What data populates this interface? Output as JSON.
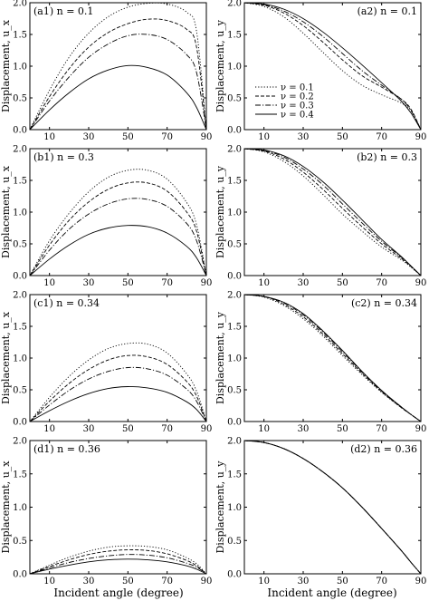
{
  "figure": {
    "xlabel_common": "Incident angle (degree)"
  },
  "legend": {
    "entries": [
      {
        "label": "ν = 0.1",
        "dash": "1.2,2"
      },
      {
        "label": "ν = 0.2",
        "dash": "4,2"
      },
      {
        "label": "ν = 0.3",
        "dash": "6,2,1.2,2"
      },
      {
        "label": "ν = 0.4",
        "dash": ""
      }
    ]
  },
  "chart_data": [
    {
      "id": "a1",
      "type": "line",
      "panel_label": "(a1) n = 0.1",
      "ylabel": "Displacement, u_x",
      "xlim": [
        0,
        90
      ],
      "ylim": [
        0,
        2.0
      ],
      "xticks": [
        10,
        30,
        50,
        70,
        90
      ],
      "yticks": [
        0.0,
        0.5,
        1.0,
        1.5,
        2.0
      ],
      "series": [
        {
          "name": "ν = 0.1",
          "x": [
            0,
            10,
            20,
            30,
            40,
            50,
            60,
            70,
            80,
            85,
            90
          ],
          "y": [
            0,
            0.62,
            1.14,
            1.52,
            1.78,
            1.93,
            1.99,
            1.98,
            1.85,
            1.55,
            0
          ]
        },
        {
          "name": "ν = 0.2",
          "x": [
            0,
            10,
            20,
            30,
            40,
            50,
            60,
            70,
            80,
            85,
            90
          ],
          "y": [
            0,
            0.52,
            0.96,
            1.3,
            1.53,
            1.67,
            1.74,
            1.72,
            1.58,
            1.3,
            0
          ]
        },
        {
          "name": "ν = 0.3",
          "x": [
            0,
            10,
            20,
            30,
            40,
            50,
            60,
            70,
            80,
            85,
            90
          ],
          "y": [
            0,
            0.45,
            0.83,
            1.14,
            1.35,
            1.48,
            1.5,
            1.42,
            1.18,
            0.9,
            0
          ]
        },
        {
          "name": "ν = 0.4",
          "x": [
            0,
            10,
            20,
            30,
            40,
            50,
            60,
            70,
            80,
            85,
            90
          ],
          "y": [
            0,
            0.31,
            0.58,
            0.8,
            0.94,
            1.01,
            0.98,
            0.86,
            0.58,
            0.35,
            0
          ]
        }
      ]
    },
    {
      "id": "a2",
      "type": "line",
      "panel_label": "(a2) n = 0.1",
      "ylabel": "Displacement, u_y",
      "xlim": [
        0,
        90
      ],
      "ylim": [
        0,
        2.0
      ],
      "xticks": [
        10,
        30,
        50,
        70,
        90
      ],
      "yticks": [
        0.0,
        0.5,
        1.0,
        1.5,
        2.0
      ],
      "series": [
        {
          "name": "ν = 0.1",
          "x": [
            0,
            10,
            20,
            30,
            40,
            50,
            60,
            70,
            80,
            85,
            90
          ],
          "y": [
            2.0,
            1.94,
            1.78,
            1.52,
            1.22,
            0.93,
            0.7,
            0.55,
            0.42,
            0.3,
            0
          ]
        },
        {
          "name": "ν = 0.2",
          "x": [
            0,
            10,
            20,
            30,
            40,
            50,
            60,
            70,
            80,
            85,
            90
          ],
          "y": [
            2.0,
            1.96,
            1.84,
            1.64,
            1.38,
            1.1,
            0.85,
            0.67,
            0.48,
            0.32,
            0
          ]
        },
        {
          "name": "ν = 0.3",
          "x": [
            0,
            10,
            20,
            30,
            40,
            50,
            60,
            70,
            80,
            85,
            90
          ],
          "y": [
            2.0,
            1.97,
            1.87,
            1.7,
            1.47,
            1.2,
            0.93,
            0.7,
            0.48,
            0.3,
            0
          ]
        },
        {
          "name": "ν = 0.4",
          "x": [
            0,
            10,
            20,
            30,
            40,
            50,
            60,
            70,
            80,
            85,
            90
          ],
          "y": [
            2.0,
            1.98,
            1.9,
            1.75,
            1.54,
            1.29,
            1.02,
            0.74,
            0.45,
            0.26,
            0
          ]
        }
      ]
    },
    {
      "id": "b1",
      "type": "line",
      "panel_label": "(b1) n = 0.3",
      "ylabel": "Displacement, u_x",
      "xlim": [
        0,
        90
      ],
      "ylim": [
        0,
        2.0
      ],
      "xticks": [
        10,
        30,
        50,
        70,
        90
      ],
      "yticks": [
        0.0,
        0.5,
        1.0,
        1.5,
        2.0
      ],
      "series": [
        {
          "name": "ν = 0.1",
          "x": [
            0,
            10,
            20,
            30,
            40,
            50,
            60,
            70,
            80,
            85,
            90
          ],
          "y": [
            0,
            0.55,
            0.98,
            1.32,
            1.55,
            1.66,
            1.66,
            1.52,
            1.15,
            0.8,
            0
          ]
        },
        {
          "name": "ν = 0.2",
          "x": [
            0,
            10,
            20,
            30,
            40,
            50,
            60,
            70,
            80,
            85,
            90
          ],
          "y": [
            0,
            0.48,
            0.87,
            1.16,
            1.36,
            1.46,
            1.46,
            1.33,
            1.0,
            0.7,
            0
          ]
        },
        {
          "name": "ν = 0.3",
          "x": [
            0,
            10,
            20,
            30,
            40,
            50,
            60,
            70,
            80,
            85,
            90
          ],
          "y": [
            0,
            0.4,
            0.73,
            0.97,
            1.13,
            1.21,
            1.2,
            1.09,
            0.82,
            0.55,
            0
          ]
        },
        {
          "name": "ν = 0.4",
          "x": [
            0,
            10,
            20,
            30,
            40,
            50,
            60,
            70,
            80,
            85,
            90
          ],
          "y": [
            0,
            0.26,
            0.48,
            0.65,
            0.75,
            0.79,
            0.77,
            0.67,
            0.46,
            0.28,
            0
          ]
        }
      ]
    },
    {
      "id": "b2",
      "type": "line",
      "panel_label": "(b2) n = 0.3",
      "ylabel": "Displacement, u_y",
      "xlim": [
        0,
        90
      ],
      "ylim": [
        0,
        2.0
      ],
      "xticks": [
        10,
        30,
        50,
        70,
        90
      ],
      "yticks": [
        0.0,
        0.5,
        1.0,
        1.5,
        2.0
      ],
      "series": [
        {
          "name": "ν = 0.1",
          "x": [
            0,
            10,
            20,
            30,
            40,
            50,
            60,
            70,
            80,
            85,
            90
          ],
          "y": [
            2.0,
            1.95,
            1.8,
            1.57,
            1.28,
            0.97,
            0.7,
            0.45,
            0.25,
            0.13,
            0
          ]
        },
        {
          "name": "ν = 0.2",
          "x": [
            0,
            10,
            20,
            30,
            40,
            50,
            60,
            70,
            80,
            85,
            90
          ],
          "y": [
            2.0,
            1.96,
            1.84,
            1.63,
            1.36,
            1.06,
            0.77,
            0.5,
            0.27,
            0.14,
            0
          ]
        },
        {
          "name": "ν = 0.3",
          "x": [
            0,
            10,
            20,
            30,
            40,
            50,
            60,
            70,
            80,
            85,
            90
          ],
          "y": [
            2.0,
            1.97,
            1.87,
            1.68,
            1.43,
            1.13,
            0.83,
            0.54,
            0.29,
            0.15,
            0
          ]
        },
        {
          "name": "ν = 0.4",
          "x": [
            0,
            10,
            20,
            30,
            40,
            50,
            60,
            70,
            80,
            85,
            90
          ],
          "y": [
            2.0,
            1.98,
            1.89,
            1.72,
            1.48,
            1.19,
            0.88,
            0.57,
            0.3,
            0.15,
            0
          ]
        }
      ]
    },
    {
      "id": "c1",
      "type": "line",
      "panel_label": "(c1) n = 0.34",
      "ylabel": "Displacement, u_x",
      "xlim": [
        0,
        90
      ],
      "ylim": [
        0,
        2.0
      ],
      "xticks": [
        10,
        30,
        50,
        70,
        90
      ],
      "yticks": [
        0.0,
        0.5,
        1.0,
        1.5,
        2.0
      ],
      "series": [
        {
          "name": "ν = 0.1",
          "x": [
            0,
            10,
            20,
            30,
            40,
            50,
            60,
            70,
            80,
            85,
            90
          ],
          "y": [
            0,
            0.38,
            0.71,
            0.97,
            1.15,
            1.23,
            1.22,
            1.08,
            0.75,
            0.48,
            0
          ]
        },
        {
          "name": "ν = 0.2",
          "x": [
            0,
            10,
            20,
            30,
            40,
            50,
            60,
            70,
            80,
            85,
            90
          ],
          "y": [
            0,
            0.32,
            0.6,
            0.82,
            0.97,
            1.04,
            1.02,
            0.9,
            0.63,
            0.4,
            0
          ]
        },
        {
          "name": "ν = 0.3",
          "x": [
            0,
            10,
            20,
            30,
            40,
            50,
            60,
            70,
            80,
            85,
            90
          ],
          "y": [
            0,
            0.26,
            0.49,
            0.67,
            0.79,
            0.85,
            0.83,
            0.73,
            0.51,
            0.32,
            0
          ]
        },
        {
          "name": "ν = 0.4",
          "x": [
            0,
            10,
            20,
            30,
            40,
            50,
            60,
            70,
            80,
            85,
            90
          ],
          "y": [
            0,
            0.17,
            0.32,
            0.44,
            0.52,
            0.55,
            0.53,
            0.46,
            0.31,
            0.19,
            0
          ]
        }
      ]
    },
    {
      "id": "c2",
      "type": "line",
      "panel_label": "(c2) n = 0.34",
      "ylabel": "Displacement, u_y",
      "xlim": [
        0,
        90
      ],
      "ylim": [
        0,
        2.0
      ],
      "xticks": [
        10,
        30,
        50,
        70,
        90
      ],
      "yticks": [
        0.0,
        0.5,
        1.0,
        1.5,
        2.0
      ],
      "series": [
        {
          "name": "ν = 0.1",
          "x": [
            0,
            10,
            20,
            30,
            40,
            50,
            60,
            70,
            80,
            85,
            90
          ],
          "y": [
            2.0,
            1.96,
            1.83,
            1.62,
            1.35,
            1.04,
            0.74,
            0.46,
            0.22,
            0.11,
            0
          ]
        },
        {
          "name": "ν = 0.2",
          "x": [
            0,
            10,
            20,
            30,
            40,
            50,
            60,
            70,
            80,
            85,
            90
          ],
          "y": [
            2.0,
            1.97,
            1.85,
            1.65,
            1.38,
            1.07,
            0.76,
            0.47,
            0.22,
            0.11,
            0
          ]
        },
        {
          "name": "ν = 0.3",
          "x": [
            0,
            10,
            20,
            30,
            40,
            50,
            60,
            70,
            80,
            85,
            90
          ],
          "y": [
            2.0,
            1.97,
            1.87,
            1.68,
            1.41,
            1.1,
            0.78,
            0.48,
            0.23,
            0.11,
            0
          ]
        },
        {
          "name": "ν = 0.4",
          "x": [
            0,
            10,
            20,
            30,
            40,
            50,
            60,
            70,
            80,
            85,
            90
          ],
          "y": [
            2.0,
            1.97,
            1.88,
            1.7,
            1.43,
            1.12,
            0.79,
            0.49,
            0.23,
            0.11,
            0
          ]
        }
      ]
    },
    {
      "id": "d1",
      "type": "line",
      "panel_label": "(d1) n = 0.36",
      "ylabel": "Displacement, u_x",
      "xlim": [
        0,
        90
      ],
      "ylim": [
        0,
        2.0
      ],
      "xticks": [
        10,
        30,
        50,
        70,
        90
      ],
      "yticks": [
        0.0,
        0.5,
        1.0,
        1.5,
        2.0
      ],
      "series": [
        {
          "name": "ν = 0.1",
          "x": [
            0,
            10,
            20,
            30,
            40,
            50,
            60,
            70,
            80,
            85,
            90
          ],
          "y": [
            0,
            0.13,
            0.25,
            0.34,
            0.4,
            0.42,
            0.41,
            0.36,
            0.24,
            0.15,
            0
          ]
        },
        {
          "name": "ν = 0.2",
          "x": [
            0,
            10,
            20,
            30,
            40,
            50,
            60,
            70,
            80,
            85,
            90
          ],
          "y": [
            0,
            0.11,
            0.21,
            0.29,
            0.34,
            0.36,
            0.35,
            0.3,
            0.2,
            0.12,
            0
          ]
        },
        {
          "name": "ν = 0.3",
          "x": [
            0,
            10,
            20,
            30,
            40,
            50,
            60,
            70,
            80,
            85,
            90
          ],
          "y": [
            0,
            0.09,
            0.17,
            0.23,
            0.27,
            0.29,
            0.28,
            0.24,
            0.16,
            0.1,
            0
          ]
        },
        {
          "name": "ν = 0.4",
          "x": [
            0,
            10,
            20,
            30,
            40,
            50,
            60,
            70,
            80,
            85,
            90
          ],
          "y": [
            0,
            0.07,
            0.13,
            0.18,
            0.21,
            0.22,
            0.21,
            0.18,
            0.12,
            0.07,
            0
          ]
        }
      ]
    },
    {
      "id": "d2",
      "type": "line",
      "panel_label": "(d2) n = 0.36",
      "ylabel": "Displacement, u_y",
      "xlim": [
        0,
        90
      ],
      "ylim": [
        0,
        2.0
      ],
      "xticks": [
        10,
        30,
        50,
        70,
        90
      ],
      "yticks": [
        0.0,
        0.5,
        1.0,
        1.5,
        2.0
      ],
      "series": [
        {
          "name": "ν = 0.1",
          "x": [
            0,
            10,
            20,
            30,
            40,
            50,
            60,
            70,
            80,
            85,
            90
          ],
          "y": [
            2.0,
            1.97,
            1.88,
            1.73,
            1.53,
            1.29,
            1.0,
            0.68,
            0.35,
            0.17,
            0
          ]
        },
        {
          "name": "ν = 0.2",
          "x": [
            0,
            10,
            20,
            30,
            40,
            50,
            60,
            70,
            80,
            85,
            90
          ],
          "y": [
            2.0,
            1.97,
            1.88,
            1.73,
            1.53,
            1.29,
            1.0,
            0.68,
            0.35,
            0.17,
            0
          ]
        },
        {
          "name": "ν = 0.3",
          "x": [
            0,
            10,
            20,
            30,
            40,
            50,
            60,
            70,
            80,
            85,
            90
          ],
          "y": [
            2.0,
            1.97,
            1.88,
            1.73,
            1.53,
            1.29,
            1.0,
            0.68,
            0.35,
            0.17,
            0
          ]
        },
        {
          "name": "ν = 0.4",
          "x": [
            0,
            10,
            20,
            30,
            40,
            50,
            60,
            70,
            80,
            85,
            90
          ],
          "y": [
            2.0,
            1.97,
            1.88,
            1.73,
            1.53,
            1.29,
            1.0,
            0.68,
            0.35,
            0.17,
            0
          ]
        }
      ]
    }
  ]
}
